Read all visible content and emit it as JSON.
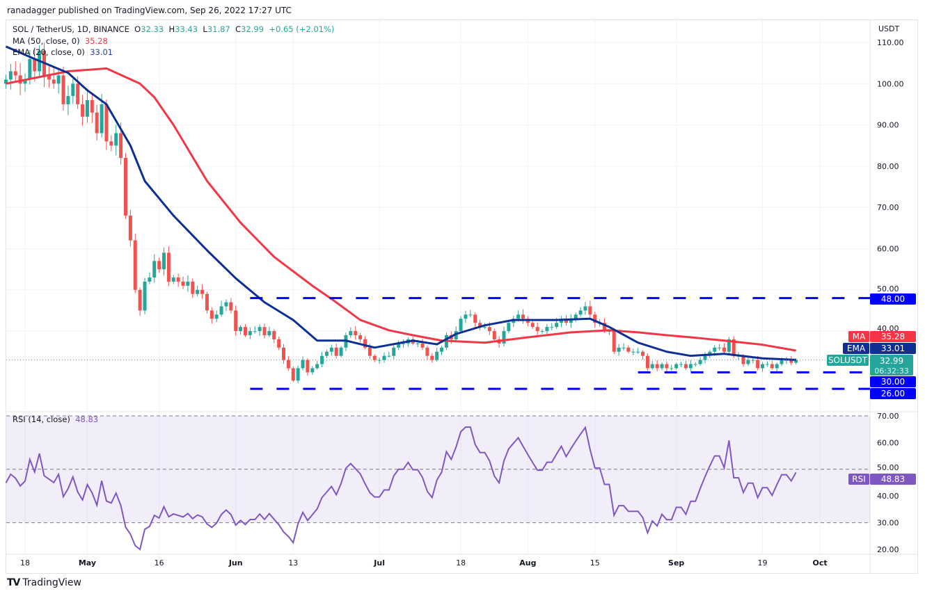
{
  "header": {
    "published": "ranadagger published on TradingView.com, Sep 26, 2022 17:27 UTC",
    "symbol": "SOL / TetherUS, 1D, BINANCE",
    "o_label": "O",
    "o": "32.33",
    "h_label": "H",
    "h": "33.43",
    "l_label": "L",
    "l": "31.87",
    "c_label": "C",
    "c": "32.99",
    "change": "+0.65 (+2.01%)",
    "ma_label": "MA (50, close, 0)",
    "ma_value": "35.28",
    "ema_label": "EMA (20, close, 0)",
    "ema_value": "33.01",
    "rsi_label": "RSI (14, close)",
    "rsi_value": "48.83"
  },
  "footer": {
    "brand": "TradingView"
  },
  "colors": {
    "up": "#26a69a",
    "down": "#ef5350",
    "ma": "#f23645",
    "ema": "#0c2f94",
    "rsi": "#7e57c2",
    "levels": "#0000ff"
  },
  "chart_data": {
    "type": "candlestick",
    "currency_label": "USDT",
    "date_range": [
      "2022-04-14",
      "2022-09-26"
    ],
    "close": [
      101,
      103,
      102,
      100,
      101,
      106,
      103,
      108,
      102,
      101,
      100,
      102,
      95,
      97,
      100,
      95,
      92,
      96,
      93,
      88,
      95,
      86,
      85,
      88,
      82,
      68,
      62,
      50,
      45,
      52,
      53,
      57,
      55,
      59,
      52,
      53,
      52,
      51,
      52,
      49,
      50,
      49,
      45,
      43,
      44,
      46,
      47,
      45,
      40,
      41,
      39,
      40,
      40,
      41,
      39,
      40,
      38,
      36,
      33,
      31,
      28,
      31,
      33,
      30,
      31,
      32,
      34,
      35,
      36,
      34,
      36,
      39,
      40,
      39,
      38,
      36,
      34,
      33,
      33,
      34,
      34,
      36,
      37,
      37,
      38,
      37,
      37,
      36,
      34,
      33,
      35,
      36,
      39,
      38,
      40,
      43,
      44,
      44,
      42,
      41,
      41,
      40,
      38,
      37,
      40,
      42,
      43,
      44,
      43,
      42,
      41,
      40,
      40,
      41,
      41,
      42,
      43,
      42,
      43,
      44,
      45,
      46,
      44,
      42,
      42,
      40,
      40,
      35,
      36,
      36,
      35,
      35,
      35,
      34,
      31,
      32,
      31,
      32,
      31,
      31,
      32,
      32,
      31,
      32,
      32,
      33,
      34,
      35,
      36,
      36,
      35,
      38,
      34,
      34,
      32,
      33,
      33,
      31,
      32,
      32,
      31,
      32,
      33,
      33,
      32.34,
      32.99
    ],
    "last_candle": {
      "open": 32.33,
      "high": 33.43,
      "low": 31.87,
      "close": 32.99
    },
    "ma50": [
      [
        "2022-04-14",
        100
      ],
      [
        "2022-04-27",
        103
      ],
      [
        "2022-05-05",
        103.7
      ],
      [
        "2022-05-12",
        100
      ],
      [
        "2022-05-15",
        96.7
      ],
      [
        "2022-05-19",
        90
      ],
      [
        "2022-05-26",
        76.4
      ],
      [
        "2022-06-02",
        66.3
      ],
      [
        "2022-06-09",
        58
      ],
      [
        "2022-06-17",
        51
      ],
      [
        "2022-06-21",
        47.8
      ],
      [
        "2022-06-27",
        42.7
      ],
      [
        "2022-07-03",
        40.2
      ],
      [
        "2022-07-08",
        39
      ],
      [
        "2022-07-14",
        37.7
      ],
      [
        "2022-07-23",
        37.2
      ],
      [
        "2022-08-01",
        38.5
      ],
      [
        "2022-08-10",
        39.7
      ],
      [
        "2022-08-18",
        40.2
      ],
      [
        "2022-08-24",
        39.7
      ],
      [
        "2022-08-30",
        39
      ],
      [
        "2022-09-04",
        38.5
      ],
      [
        "2022-09-11",
        37.7
      ],
      [
        "2022-09-19",
        36.7
      ],
      [
        "2022-09-26",
        35.28
      ]
    ],
    "ema20": [
      [
        "2022-04-14",
        109
      ],
      [
        "2022-04-20",
        106
      ],
      [
        "2022-04-27",
        102.6
      ],
      [
        "2022-05-01",
        98.4
      ],
      [
        "2022-05-05",
        95
      ],
      [
        "2022-05-10",
        85
      ],
      [
        "2022-05-13",
        76.4
      ],
      [
        "2022-05-19",
        68
      ],
      [
        "2022-05-26",
        59.6
      ],
      [
        "2022-06-01",
        52.8
      ],
      [
        "2022-06-07",
        47
      ],
      [
        "2022-06-13",
        42.7
      ],
      [
        "2022-06-18",
        37.7
      ],
      [
        "2022-06-24",
        37.7
      ],
      [
        "2022-06-30",
        36
      ],
      [
        "2022-07-08",
        37.7
      ],
      [
        "2022-07-13",
        36.8
      ],
      [
        "2022-07-17",
        39.3
      ],
      [
        "2022-07-23",
        41.4
      ],
      [
        "2022-07-29",
        42.7
      ],
      [
        "2022-08-07",
        42.7
      ],
      [
        "2022-08-14",
        43
      ],
      [
        "2022-08-18",
        41
      ],
      [
        "2022-08-24",
        37.2
      ],
      [
        "2022-08-30",
        35
      ],
      [
        "2022-09-04",
        34
      ],
      [
        "2022-09-11",
        34.5
      ],
      [
        "2022-09-19",
        33.4
      ],
      [
        "2022-09-26",
        33.01
      ]
    ],
    "levels": [
      {
        "value": 48,
        "label": "48.00",
        "from": "2022-06-04"
      },
      {
        "value": 30,
        "label": "30.00",
        "from": "2022-08-24"
      },
      {
        "value": 26,
        "label": "26.00",
        "from": "2022-06-04"
      }
    ],
    "y_ticks": [
      "110.00",
      "100.00",
      "90.00",
      "80.00",
      "70.00",
      "60.00",
      "50.00",
      "40.00"
    ],
    "y_tick_values": [
      110,
      100,
      90,
      80,
      70,
      60,
      50,
      40
    ],
    "ylim": [
      20,
      115
    ],
    "x_ticks": [
      [
        "2022-04-18",
        "18"
      ],
      [
        "2022-05-01",
        "May"
      ],
      [
        "2022-05-16",
        "16"
      ],
      [
        "2022-06-01",
        "Jun"
      ],
      [
        "2022-06-13",
        "13"
      ],
      [
        "2022-07-01",
        "Jul"
      ],
      [
        "2022-07-18",
        "18"
      ],
      [
        "2022-08-01",
        "Aug"
      ],
      [
        "2022-08-15",
        "15"
      ],
      [
        "2022-09-01",
        "Sep"
      ],
      [
        "2022-09-19",
        "19"
      ],
      [
        "2022-10-01",
        "Oct"
      ]
    ],
    "price_tags": {
      "ma": "MA",
      "ma_value": "35.28",
      "ema": "EMA",
      "ema_value": "33.01",
      "symbol": "SOLUSDT",
      "last": "32.99",
      "countdown": "06:32:33"
    },
    "rsi": {
      "period": 14,
      "ylim": [
        20,
        70
      ],
      "y_ticks": [
        "70.00",
        "60.00",
        "50.00",
        "40.00",
        "30.00",
        "20.00"
      ],
      "y_tick_values": [
        70,
        60,
        50,
        40,
        30,
        20
      ],
      "bands": [
        70,
        50,
        30
      ],
      "tag": "RSI",
      "last": "48.83"
    }
  }
}
